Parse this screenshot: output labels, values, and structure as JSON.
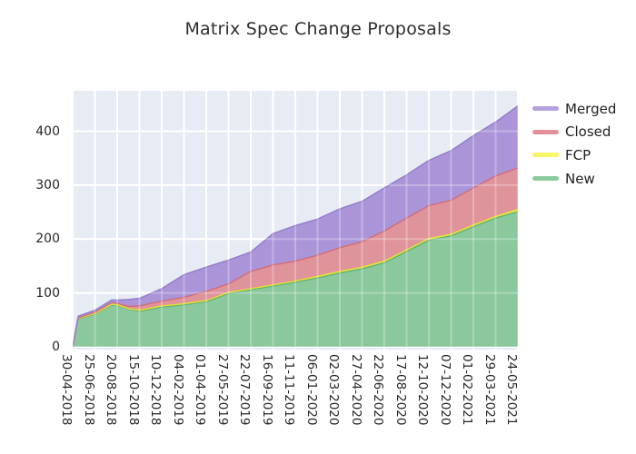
{
  "title": "Matrix Spec Change Proposals",
  "colors": {
    "plot_background": "#e6ebf4",
    "gridline": "#ffffff",
    "text": "#262626",
    "title_text": "#2e2e2e"
  },
  "legend": {
    "items": [
      {
        "label": "Merged",
        "swatch_color": "#b4a2de"
      },
      {
        "label": "Closed",
        "swatch_color": "#e2909a"
      },
      {
        "label": "FCP",
        "swatch_color": "#f7f568"
      },
      {
        "label": "New",
        "swatch_color": "#8dcb9e"
      }
    ]
  },
  "chart_data": {
    "type": "area",
    "stacked": true,
    "title": "Matrix Spec Change Proposals",
    "xlabel": "",
    "ylabel": "",
    "grid": true,
    "legend_position": "right-outside",
    "y_ticks": [
      0,
      100,
      200,
      300,
      400
    ],
    "ylim": [
      -5,
      475
    ],
    "x_tick_interval_days": 56,
    "x_tick_labels": [
      "30-04-2018",
      "25-06-2018",
      "20-08-2018",
      "15-10-2018",
      "10-12-2018",
      "04-02-2019",
      "01-04-2019",
      "27-05-2019",
      "22-07-2019",
      "16-09-2019",
      "11-11-2019",
      "06-01-2020",
      "02-03-2020",
      "27-04-2020",
      "22-06-2020",
      "17-08-2020",
      "12-10-2020",
      "07-12-2020",
      "01-02-2021",
      "29-03-2021",
      "24-05-2021"
    ],
    "x_total_days": 1120,
    "points_dates": [
      "30-04-2018",
      "14-05-2018",
      "25-06-2018",
      "06-08-2018",
      "20-08-2018",
      "17-09-2018",
      "15-10-2018",
      "10-12-2018",
      "04-02-2019",
      "01-04-2019",
      "27-05-2019",
      "22-07-2019",
      "16-09-2019",
      "11-11-2019",
      "06-01-2020",
      "02-03-2020",
      "27-04-2020",
      "22-06-2020",
      "17-08-2020",
      "12-10-2020",
      "07-12-2020",
      "01-02-2021",
      "29-03-2021",
      "24-05-2021"
    ],
    "points_days": [
      0,
      14,
      56,
      98,
      112,
      140,
      168,
      224,
      280,
      336,
      392,
      448,
      504,
      560,
      616,
      672,
      728,
      784,
      840,
      896,
      952,
      1008,
      1064,
      1120
    ],
    "series": [
      {
        "name": "New",
        "fill": "#8bc89c",
        "line": "#5cb27b",
        "values": [
          0,
          52,
          61,
          78,
          77,
          70,
          66,
          74,
          78,
          84,
          99,
          106,
          113,
          120,
          128,
          137,
          145,
          156,
          177,
          198,
          206,
          223,
          239,
          251
        ]
      },
      {
        "name": "FCP",
        "fill": "#f6f356",
        "line": "#e5e02e",
        "values": [
          0,
          1,
          1,
          1,
          1,
          1,
          2,
          2,
          2,
          2,
          2,
          2,
          2,
          2,
          3,
          3,
          3,
          3,
          3,
          3,
          3,
          3,
          3,
          4
        ]
      },
      {
        "name": "Closed",
        "fill": "#df939b",
        "line": "#d26b77",
        "values": [
          0,
          1,
          2,
          3,
          3,
          4,
          8,
          9,
          12,
          17,
          16,
          32,
          37,
          37,
          39,
          44,
          47,
          56,
          59,
          61,
          63,
          69,
          75,
          77
        ]
      },
      {
        "name": "Merged",
        "fill": "#ab95d8",
        "line": "#937acb",
        "values": [
          0,
          3,
          4,
          5,
          6,
          13,
          14,
          23,
          42,
          45,
          44,
          36,
          58,
          66,
          67,
          72,
          75,
          80,
          80,
          84,
          92,
          97,
          100,
          115
        ]
      }
    ],
    "stack_order_bottom_to_top": [
      "New",
      "FCP",
      "Closed",
      "Merged"
    ],
    "totals": [
      0,
      57,
      68,
      87,
      87,
      88,
      90,
      108,
      134,
      148,
      161,
      176,
      210,
      225,
      237,
      256,
      270,
      295,
      319,
      346,
      364,
      392,
      417,
      447
    ]
  }
}
